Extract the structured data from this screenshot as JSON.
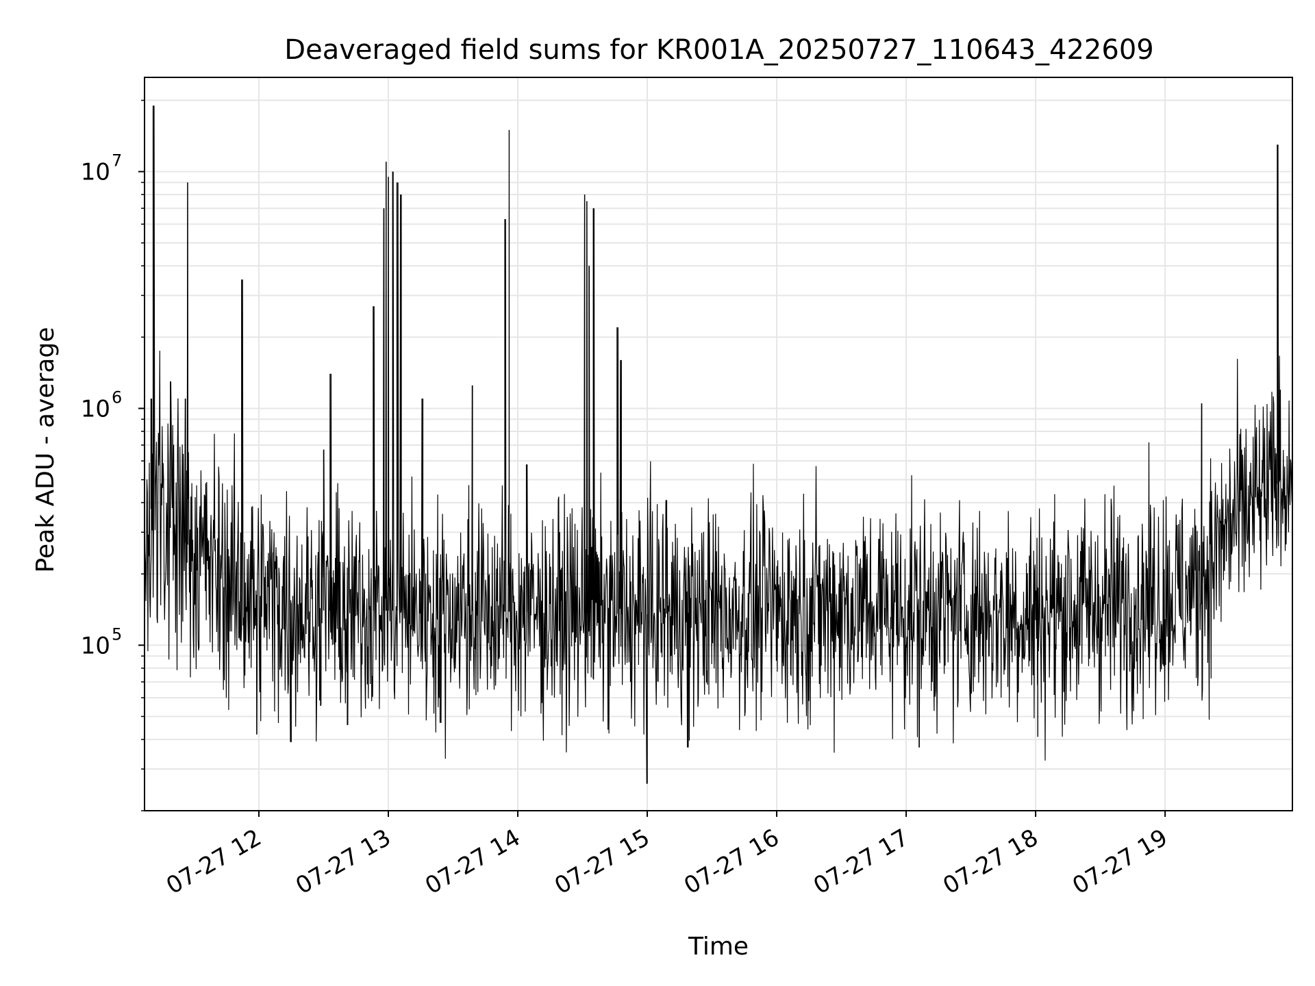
{
  "chart_data": {
    "type": "line",
    "title": "Deaveraged field sums for KR001A_20250727_110643_422609",
    "xlabel": "Time",
    "ylabel": "Peak ADU - average",
    "y_scale": "log",
    "y_base": "10",
    "ylim": [
      20000,
      25000000
    ],
    "xlim": [
      "2025-07-27 11:07",
      "2025-07-27 19:59"
    ],
    "grid": true,
    "series_color": "#000000",
    "y_ticks": [
      {
        "value": 100000,
        "exp": "5"
      },
      {
        "value": 1000000,
        "exp": "6"
      },
      {
        "value": 10000000,
        "exp": "7"
      }
    ],
    "x_ticks": [
      {
        "value": "2025-07-27 12:00",
        "label": "07-27 12"
      },
      {
        "value": "2025-07-27 13:00",
        "label": "07-27 13"
      },
      {
        "value": "2025-07-27 14:00",
        "label": "07-27 14"
      },
      {
        "value": "2025-07-27 15:00",
        "label": "07-27 15"
      },
      {
        "value": "2025-07-27 16:00",
        "label": "07-27 16"
      },
      {
        "value": "2025-07-27 17:00",
        "label": "07-27 17"
      },
      {
        "value": "2025-07-27 18:00",
        "label": "07-27 18"
      },
      {
        "value": "2025-07-27 19:00",
        "label": "07-27 19"
      }
    ],
    "series": [
      {
        "baseline_envelope": [
          {
            "time": "2025-07-27 11:07",
            "median": 400000,
            "spread": 0.5
          },
          {
            "time": "2025-07-27 11:30",
            "median": 250000,
            "spread": 0.45
          },
          {
            "time": "2025-07-27 11:50",
            "median": 170000,
            "spread": 0.4
          },
          {
            "time": "2025-07-27 12:30",
            "median": 140000,
            "spread": 0.38
          },
          {
            "time": "2025-07-27 13:30",
            "median": 140000,
            "spread": 0.38
          },
          {
            "time": "2025-07-27 15:00",
            "median": 135000,
            "spread": 0.38
          },
          {
            "time": "2025-07-27 16:30",
            "median": 145000,
            "spread": 0.38
          },
          {
            "time": "2025-07-27 18:00",
            "median": 135000,
            "spread": 0.38
          },
          {
            "time": "2025-07-27 19:15",
            "median": 170000,
            "spread": 0.38
          },
          {
            "time": "2025-07-27 19:30",
            "median": 320000,
            "spread": 0.38
          },
          {
            "time": "2025-07-27 19:45",
            "median": 420000,
            "spread": 0.36
          },
          {
            "time": "2025-07-27 19:59",
            "median": 550000,
            "spread": 0.33
          }
        ],
        "spikes": [
          {
            "time": "2025-07-27 11:11",
            "value": 19000000
          },
          {
            "time": "2025-07-27 11:10",
            "value": 1100000
          },
          {
            "time": "2025-07-27 11:19",
            "value": 1300000
          },
          {
            "time": "2025-07-27 11:26",
            "value": 1100000
          },
          {
            "time": "2025-07-27 11:27",
            "value": 9000000
          },
          {
            "time": "2025-07-27 11:52",
            "value": 3500000
          },
          {
            "time": "2025-07-27 12:33",
            "value": 1400000
          },
          {
            "time": "2025-07-27 12:30",
            "value": 670000
          },
          {
            "time": "2025-07-27 12:53",
            "value": 2700000
          },
          {
            "time": "2025-07-27 12:58",
            "value": 7000000
          },
          {
            "time": "2025-07-27 12:59",
            "value": 11000000
          },
          {
            "time": "2025-07-27 13:00",
            "value": 9500000
          },
          {
            "time": "2025-07-27 13:02",
            "value": 10000000
          },
          {
            "time": "2025-07-27 13:04",
            "value": 9000000
          },
          {
            "time": "2025-07-27 13:06",
            "value": 8000000
          },
          {
            "time": "2025-07-27 13:16",
            "value": 1100000
          },
          {
            "time": "2025-07-27 13:39",
            "value": 1250000
          },
          {
            "time": "2025-07-27 13:54",
            "value": 6300000
          },
          {
            "time": "2025-07-27 13:56",
            "value": 15000000
          },
          {
            "time": "2025-07-27 14:04",
            "value": 580000
          },
          {
            "time": "2025-07-27 14:31",
            "value": 8000000
          },
          {
            "time": "2025-07-27 14:32",
            "value": 7500000
          },
          {
            "time": "2025-07-27 14:33",
            "value": 4000000
          },
          {
            "time": "2025-07-27 14:35",
            "value": 7000000
          },
          {
            "time": "2025-07-27 14:46",
            "value": 2200000
          },
          {
            "time": "2025-07-27 14:48",
            "value": 1600000
          },
          {
            "time": "2025-07-27 15:09",
            "value": 410000
          },
          {
            "time": "2025-07-27 19:17",
            "value": 1050000
          },
          {
            "time": "2025-07-27 19:52",
            "value": 13000000
          },
          {
            "time": "2025-07-27 19:53",
            "value": 1200000
          }
        ],
        "dips": [
          {
            "time": "2025-07-27 15:00",
            "value": 26000
          },
          {
            "time": "2025-07-27 12:15",
            "value": 39000
          },
          {
            "time": "2025-07-27 11:59",
            "value": 42000
          },
          {
            "time": "2025-07-27 15:19",
            "value": 37000
          },
          {
            "time": "2025-07-27 17:06",
            "value": 37000
          },
          {
            "time": "2025-07-27 18:01",
            "value": 41000
          },
          {
            "time": "2025-07-27 12:41",
            "value": 46000
          },
          {
            "time": "2025-07-27 13:24",
            "value": 47000
          }
        ]
      }
    ]
  }
}
